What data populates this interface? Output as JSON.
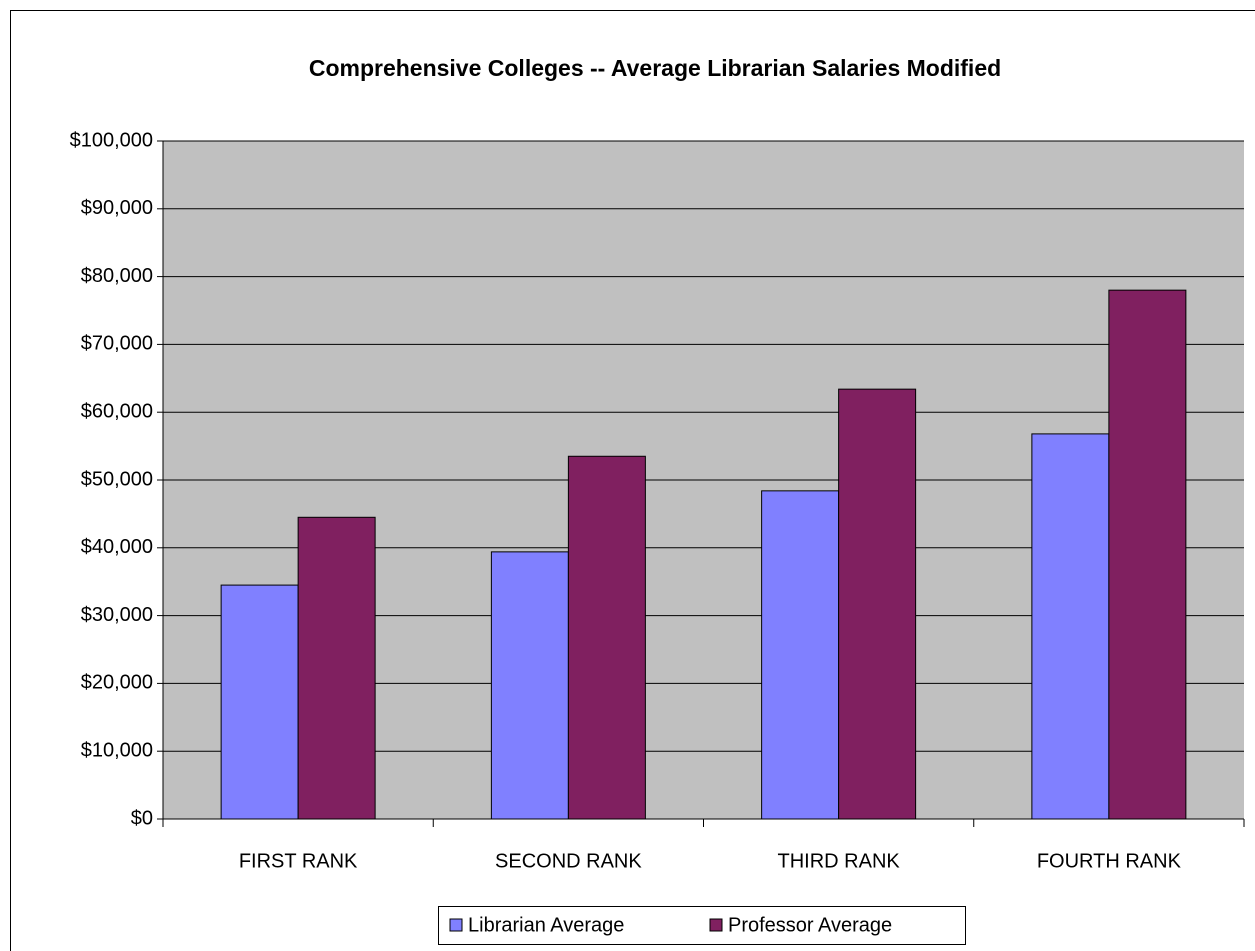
{
  "chart_data": {
    "type": "bar",
    "title": "Comprehensive Colleges -- Average Librarian Salaries Modified",
    "categories": [
      "FIRST RANK",
      "SECOND RANK",
      "THIRD RANK",
      "FOURTH RANK"
    ],
    "series": [
      {
        "name": "Librarian Average",
        "color": "#8080ff",
        "values": [
          34500,
          39400,
          48400,
          56800
        ]
      },
      {
        "name": "Professor Average",
        "color": "#802060",
        "values": [
          44500,
          53500,
          63400,
          78000
        ]
      }
    ],
    "ylim": [
      0,
      100000
    ],
    "yticks": [
      {
        "value": 0,
        "label": "$0"
      },
      {
        "value": 10000,
        "label": "$10,000"
      },
      {
        "value": 20000,
        "label": "$20,000"
      },
      {
        "value": 30000,
        "label": "$30,000"
      },
      {
        "value": 40000,
        "label": "$40,000"
      },
      {
        "value": 50000,
        "label": "$50,000"
      },
      {
        "value": 60000,
        "label": "$60,000"
      },
      {
        "value": 70000,
        "label": "$70,000"
      },
      {
        "value": 80000,
        "label": "$80,000"
      },
      {
        "value": 90000,
        "label": "$90,000"
      },
      {
        "value": 100000,
        "label": "$100,000"
      }
    ],
    "grid": true,
    "legend": "bottom"
  }
}
